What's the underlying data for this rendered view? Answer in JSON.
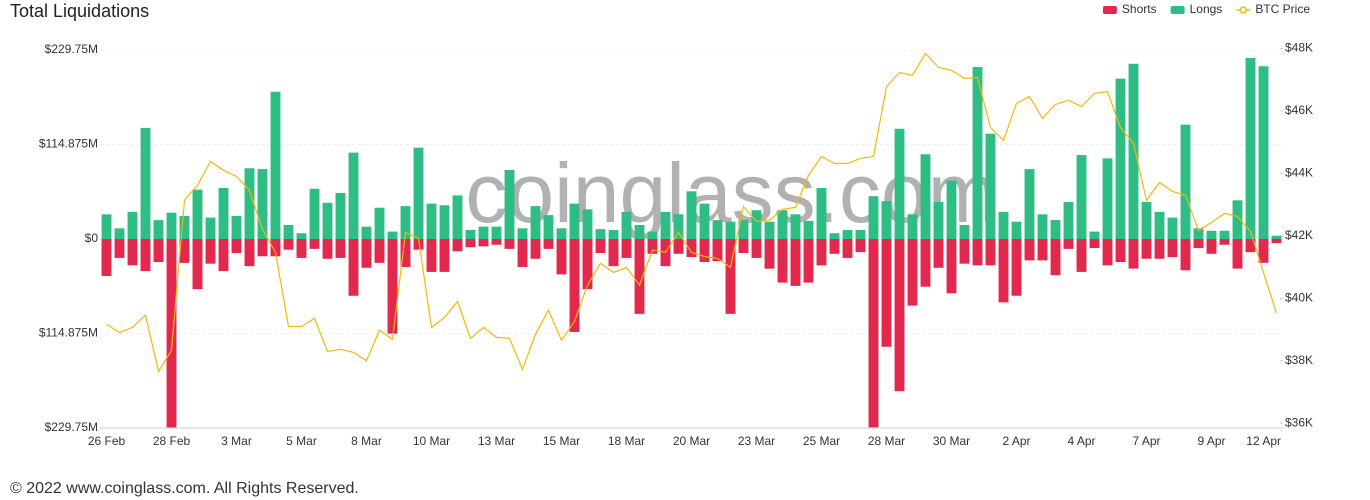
{
  "chart_data": {
    "type": "bar",
    "title": "Total Liquidations",
    "categories": [
      "26 Feb",
      null,
      null,
      null,
      null,
      "28 Feb",
      null,
      null,
      null,
      null,
      "3 Mar",
      null,
      null,
      null,
      null,
      "5 Mar",
      null,
      null,
      null,
      null,
      "8 Mar",
      null,
      null,
      null,
      null,
      "10 Mar",
      null,
      null,
      null,
      null,
      "13 Mar",
      null,
      null,
      null,
      null,
      "15 Mar",
      null,
      null,
      null,
      null,
      "18 Mar",
      null,
      null,
      null,
      null,
      "20 Mar",
      null,
      null,
      null,
      null,
      "23 Mar",
      null,
      null,
      null,
      null,
      "25 Mar",
      null,
      null,
      null,
      null,
      "28 Mar",
      null,
      null,
      null,
      null,
      "30 Mar",
      null,
      null,
      null,
      null,
      "2 Apr",
      null,
      null,
      null,
      null,
      "4 Apr",
      null,
      null,
      null,
      null,
      "7 Apr",
      null,
      null,
      null,
      null,
      "9 Apr",
      null,
      null,
      null,
      null,
      "12 Apr"
    ],
    "series": [
      {
        "name": "Shorts",
        "color": "#e3284d",
        "values": [
          -45,
          -23,
          -32,
          -39,
          -28,
          -229,
          -29,
          -61,
          -30,
          -39,
          -17,
          -33,
          -21,
          -21,
          -13,
          -23,
          -12,
          -24,
          -23,
          -69,
          -35,
          -29,
          -115,
          -34,
          -13,
          -40,
          -40,
          -15,
          -10,
          -9,
          -7,
          -12,
          -34,
          -24,
          -12,
          -43,
          -113,
          -61,
          -17,
          -33,
          -23,
          -91,
          -18,
          -33,
          -18,
          -22,
          -28,
          -27,
          -91,
          -17,
          -23,
          -36,
          -53,
          -57,
          -53,
          -32,
          -18,
          -23,
          -16,
          -229,
          -131,
          -185,
          -81,
          -58,
          -35,
          -66,
          -30,
          -32,
          -32,
          -77,
          -69,
          -26,
          -26,
          -44,
          -12,
          -40,
          -11,
          -32,
          -28,
          -36,
          -24,
          -24,
          -22,
          -38,
          -11,
          -18,
          -7,
          -36,
          -16,
          -29,
          -5
        ]
      },
      {
        "name": "Longs",
        "color": "#2ebd85",
        "values": [
          30,
          13,
          33,
          135,
          23,
          32,
          28,
          60,
          26,
          62,
          28,
          86,
          85,
          179,
          17,
          7,
          61,
          44,
          56,
          105,
          15,
          38,
          9,
          40,
          111,
          43,
          41,
          53,
          11,
          15,
          15,
          84,
          13,
          40,
          29,
          13,
          43,
          36,
          12,
          11,
          33,
          17,
          9,
          33,
          30,
          58,
          43,
          23,
          21,
          23,
          35,
          21,
          35,
          30,
          22,
          62,
          7,
          11,
          11,
          52,
          46,
          134,
          30,
          103,
          45,
          71,
          17,
          209,
          128,
          33,
          21,
          85,
          30,
          23,
          45,
          102,
          9,
          98,
          195,
          213,
          45,
          33,
          26,
          139,
          13,
          10,
          10,
          47,
          220,
          210,
          4
        ]
      },
      {
        "name": "BTC Price",
        "type": "line",
        "axis": "y2",
        "color": "#f0b90b",
        "values": [
          39.17,
          38.91,
          39.07,
          39.46,
          37.66,
          38.34,
          43.14,
          43.62,
          44.38,
          44.1,
          43.9,
          43.46,
          42.21,
          41.47,
          39.1,
          39.1,
          39.36,
          38.3,
          38.37,
          38.27,
          38.0,
          38.98,
          38.69,
          42.11,
          41.92,
          39.07,
          39.39,
          39.9,
          38.72,
          39.07,
          38.75,
          38.72,
          37.73,
          38.85,
          39.62,
          38.66,
          39.26,
          40.42,
          41.12,
          40.83,
          40.99,
          40.42,
          41.54,
          41.47,
          42.11,
          41.47,
          41.34,
          41.28,
          40.99,
          42.94,
          42.46,
          42.5,
          42.85,
          42.91,
          43.94,
          44.54,
          44.32,
          44.32,
          44.48,
          44.54,
          46.78,
          47.23,
          47.14,
          47.84,
          47.39,
          47.3,
          47.04,
          47.07,
          45.47,
          45.06,
          46.24,
          46.46,
          45.76,
          46.21,
          46.34,
          46.14,
          46.56,
          46.62,
          45.47,
          44.96,
          43.14,
          43.71,
          43.42,
          43.3,
          42.18,
          42.43,
          42.72,
          42.62,
          42.14,
          40.83,
          39.52
        ]
      }
    ],
    "ylim": [
      -229.75,
      229.75
    ],
    "yticks": [
      {
        "value": -229.75,
        "label": "$229.75M"
      },
      {
        "value": -114.875,
        "label": "$114.875M"
      },
      {
        "value": 0,
        "label": "$0"
      },
      {
        "value": 114.875,
        "label": "$114.875M"
      },
      {
        "value": 229.75,
        "label": "$229.75M"
      }
    ],
    "y2lim": [
      35.85,
      47.95
    ],
    "y2ticks": [
      {
        "value": 36,
        "label": "$36K"
      },
      {
        "value": 38,
        "label": "$38K"
      },
      {
        "value": 40,
        "label": "$40K"
      },
      {
        "value": 42,
        "label": "$42K"
      },
      {
        "value": 44,
        "label": "$44K"
      },
      {
        "value": 46,
        "label": "$46K"
      },
      {
        "value": 48,
        "label": "$48K"
      }
    ],
    "grid": true,
    "legend": "top-right",
    "watermark": "coinglass.com"
  },
  "footer": "© 2022 www.coinglass.com. All Rights Reserved."
}
